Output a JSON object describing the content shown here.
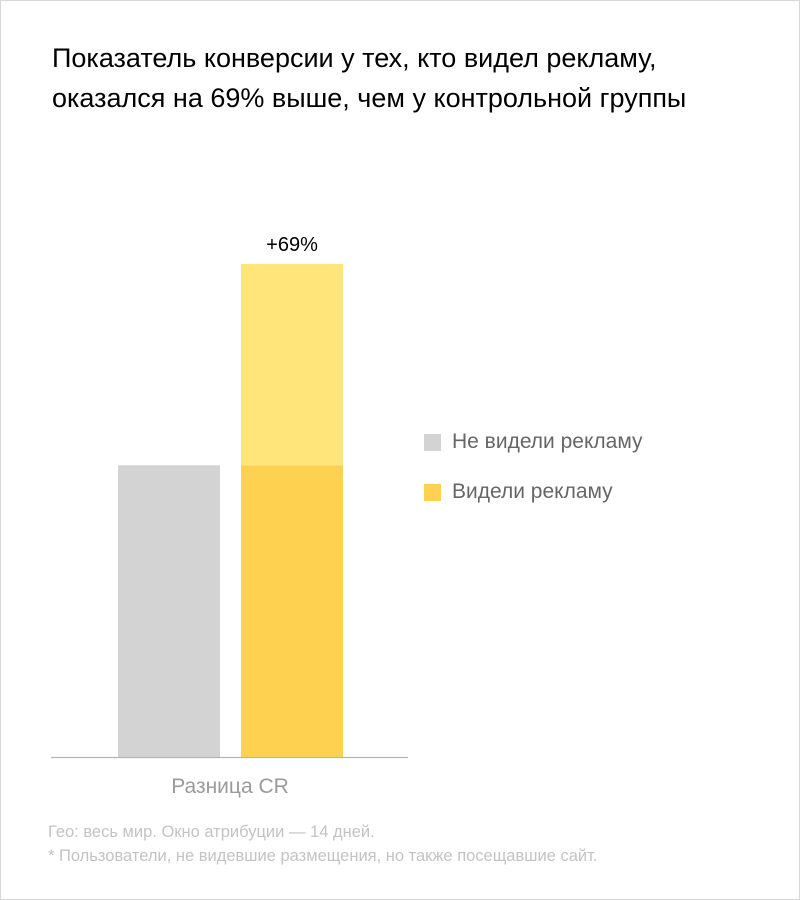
{
  "title": "Показатель конверсии у тех, кто видел рекламу, оказался на 69% выше, чем у контрольной группы",
  "chart_data": {
    "type": "bar",
    "categories": [
      "Разница CR"
    ],
    "series": [
      {
        "name": "Не видели рекламу",
        "values": [
          100
        ]
      },
      {
        "name": "Видели рекламу",
        "values": [
          169
        ]
      }
    ],
    "baseline_segment": 100,
    "annotation": "+69%",
    "title": "Показатель конверсии у тех, кто видел рекламу, оказался на 69% выше, чем у контрольной группы",
    "xlabel": "",
    "ylabel": "",
    "ylim": [
      0,
      169
    ],
    "grid": false,
    "legend_position": "right",
    "colors": {
      "not_seen": "#d3d3d3",
      "seen_base": "#fed150",
      "seen_uplift": "#ffe57a",
      "axis": "#b4b4b4",
      "category_label": "#9a9a9a"
    }
  },
  "legend": [
    {
      "label": "Не видели рекламу",
      "color": "#d3d3d3"
    },
    {
      "label": "Видели рекламу",
      "color": "#fed150"
    }
  ],
  "footnotes": [
    "Гео: весь мир. Окно атрибуции — 14 дней.",
    "* Пользователи, не видевшие размещения, но также посещавшие сайт."
  ]
}
